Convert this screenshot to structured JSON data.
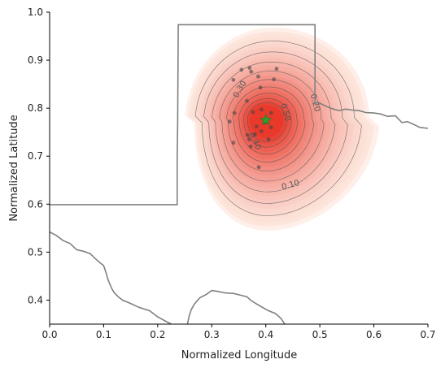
{
  "chart_data": {
    "type": "contour",
    "title": "",
    "xlabel": "Normalized Longitude",
    "ylabel": "Normalized Latitude",
    "xlim": [
      0.0,
      0.7
    ],
    "ylim": [
      0.35,
      1.0
    ],
    "xticks": [
      "0.0",
      "0.1",
      "0.2",
      "0.3",
      "0.4",
      "0.5",
      "0.6",
      "0.7"
    ],
    "yticks": [
      "0.4",
      "0.5",
      "0.6",
      "0.7",
      "0.8",
      "0.9",
      "1.0"
    ],
    "grid": false,
    "legend": "none",
    "density_peak": {
      "x": 0.4,
      "y": 0.775
    },
    "contour_levels": [
      0.1,
      0.2,
      0.3,
      0.4,
      0.5,
      0.6,
      0.7,
      0.8,
      0.9
    ],
    "contour_labels": [
      {
        "text": "0.10",
        "x": 0.447,
        "y": 0.635,
        "rotate": -15
      },
      {
        "text": "0.20",
        "x": 0.487,
        "y": 0.81,
        "rotate": 75
      },
      {
        "text": "0.30",
        "x": 0.356,
        "y": 0.837,
        "rotate": -60
      },
      {
        "text": "0.50",
        "x": 0.432,
        "y": 0.79,
        "rotate": 75
      },
      {
        "text": "0.40",
        "x": 0.376,
        "y": 0.729,
        "rotate": 65
      }
    ],
    "observations": [
      {
        "x": 0.355,
        "y": 0.88
      },
      {
        "x": 0.37,
        "y": 0.884
      },
      {
        "x": 0.373,
        "y": 0.876
      },
      {
        "x": 0.386,
        "y": 0.866
      },
      {
        "x": 0.42,
        "y": 0.882
      },
      {
        "x": 0.415,
        "y": 0.86
      },
      {
        "x": 0.34,
        "y": 0.859
      },
      {
        "x": 0.39,
        "y": 0.843
      },
      {
        "x": 0.365,
        "y": 0.815
      },
      {
        "x": 0.342,
        "y": 0.79
      },
      {
        "x": 0.333,
        "y": 0.772
      },
      {
        "x": 0.376,
        "y": 0.792
      },
      {
        "x": 0.392,
        "y": 0.797
      },
      {
        "x": 0.383,
        "y": 0.762
      },
      {
        "x": 0.398,
        "y": 0.77
      },
      {
        "x": 0.392,
        "y": 0.752
      },
      {
        "x": 0.41,
        "y": 0.76
      },
      {
        "x": 0.405,
        "y": 0.735
      },
      {
        "x": 0.38,
        "y": 0.745
      },
      {
        "x": 0.366,
        "y": 0.744
      },
      {
        "x": 0.369,
        "y": 0.735
      },
      {
        "x": 0.34,
        "y": 0.728
      },
      {
        "x": 0.387,
        "y": 0.677
      },
      {
        "x": 0.41,
        "y": 0.79
      },
      {
        "x": 0.372,
        "y": 0.72
      }
    ],
    "centroid": {
      "x": 0.4,
      "y": 0.775,
      "marker": "star",
      "color": "#2ca02c"
    },
    "boundaries": [
      {
        "name": "region-outline",
        "points": [
          [
            0.0,
            0.599
          ],
          [
            0.236,
            0.599
          ],
          [
            0.236,
            0.695
          ],
          [
            0.237,
            0.77
          ],
          [
            0.238,
            0.974
          ],
          [
            0.491,
            0.974
          ],
          [
            0.491,
            0.81
          ],
          [
            0.497,
            0.812
          ],
          [
            0.506,
            0.807
          ],
          [
            0.52,
            0.8
          ],
          [
            0.535,
            0.795
          ],
          [
            0.548,
            0.798
          ],
          [
            0.56,
            0.796
          ],
          [
            0.572,
            0.795
          ],
          [
            0.585,
            0.791
          ],
          [
            0.6,
            0.79
          ],
          [
            0.612,
            0.788
          ],
          [
            0.625,
            0.783
          ],
          [
            0.64,
            0.784
          ],
          [
            0.652,
            0.77
          ],
          [
            0.662,
            0.772
          ],
          [
            0.672,
            0.767
          ],
          [
            0.685,
            0.76
          ],
          [
            0.7,
            0.758
          ]
        ]
      },
      {
        "name": "coastline-left",
        "points": [
          [
            0.0,
            0.542
          ],
          [
            0.012,
            0.535
          ],
          [
            0.025,
            0.524
          ],
          [
            0.038,
            0.518
          ],
          [
            0.05,
            0.505
          ],
          [
            0.062,
            0.502
          ],
          [
            0.075,
            0.497
          ],
          [
            0.085,
            0.486
          ],
          [
            0.093,
            0.478
          ],
          [
            0.1,
            0.472
          ],
          [
            0.105,
            0.455
          ],
          [
            0.108,
            0.443
          ],
          [
            0.112,
            0.432
          ],
          [
            0.115,
            0.424
          ],
          [
            0.12,
            0.415
          ],
          [
            0.128,
            0.406
          ],
          [
            0.135,
            0.4
          ],
          [
            0.148,
            0.394
          ],
          [
            0.165,
            0.385
          ],
          [
            0.185,
            0.378
          ],
          [
            0.2,
            0.365
          ],
          [
            0.215,
            0.356
          ],
          [
            0.225,
            0.35
          ]
        ]
      },
      {
        "name": "coastline-bottom",
        "points": [
          [
            0.255,
            0.35
          ],
          [
            0.258,
            0.366
          ],
          [
            0.262,
            0.38
          ],
          [
            0.268,
            0.392
          ],
          [
            0.278,
            0.405
          ],
          [
            0.29,
            0.412
          ],
          [
            0.3,
            0.42
          ],
          [
            0.312,
            0.418
          ],
          [
            0.325,
            0.415
          ],
          [
            0.34,
            0.414
          ],
          [
            0.355,
            0.41
          ],
          [
            0.365,
            0.407
          ],
          [
            0.372,
            0.4
          ],
          [
            0.38,
            0.394
          ],
          [
            0.392,
            0.386
          ],
          [
            0.405,
            0.378
          ],
          [
            0.418,
            0.372
          ],
          [
            0.428,
            0.362
          ],
          [
            0.435,
            0.35
          ]
        ]
      }
    ],
    "colors": {
      "density_low": "#fde8df",
      "density_high": "#e8392b",
      "contour": "#555555",
      "boundary": "#808080",
      "points": "#444444",
      "centroid": "#2ca02c"
    }
  }
}
